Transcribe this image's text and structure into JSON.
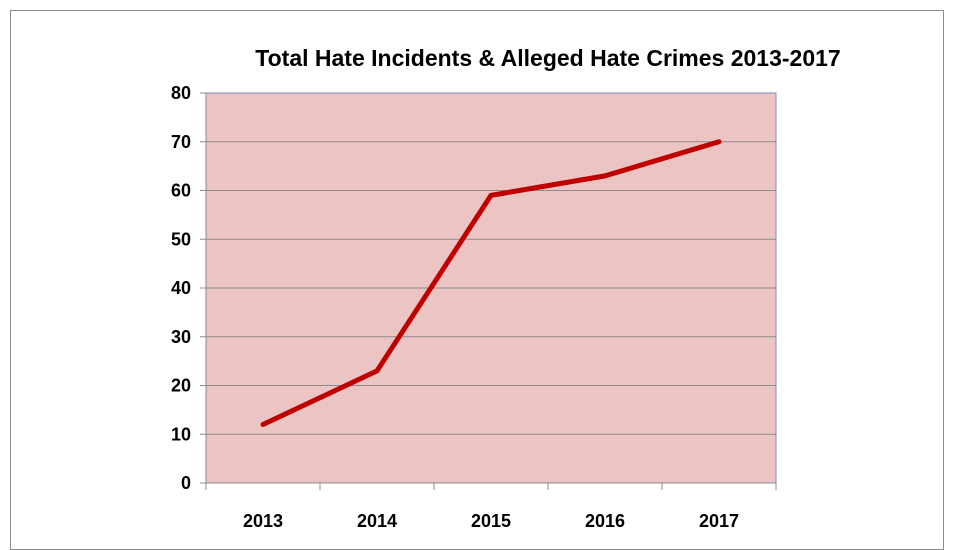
{
  "chart_data": {
    "type": "line",
    "title": "Total Hate Incidents & Alleged Hate Crimes 2013-2017",
    "xlabel": "",
    "ylabel": "",
    "categories": [
      "2013",
      "2014",
      "2015",
      "2016",
      "2017"
    ],
    "series": [
      {
        "values": [
          12,
          23,
          59,
          63,
          70
        ]
      }
    ],
    "ylim": [
      0,
      80
    ],
    "yticks": [
      0,
      10,
      20,
      30,
      40,
      50,
      60,
      70,
      80
    ],
    "grid": true,
    "legend": "none"
  },
  "colors": {
    "plot_background": "#ecc4c4",
    "line": "#c00000",
    "gridline": "#8c8c8c",
    "plot_border": "#7391b9"
  }
}
